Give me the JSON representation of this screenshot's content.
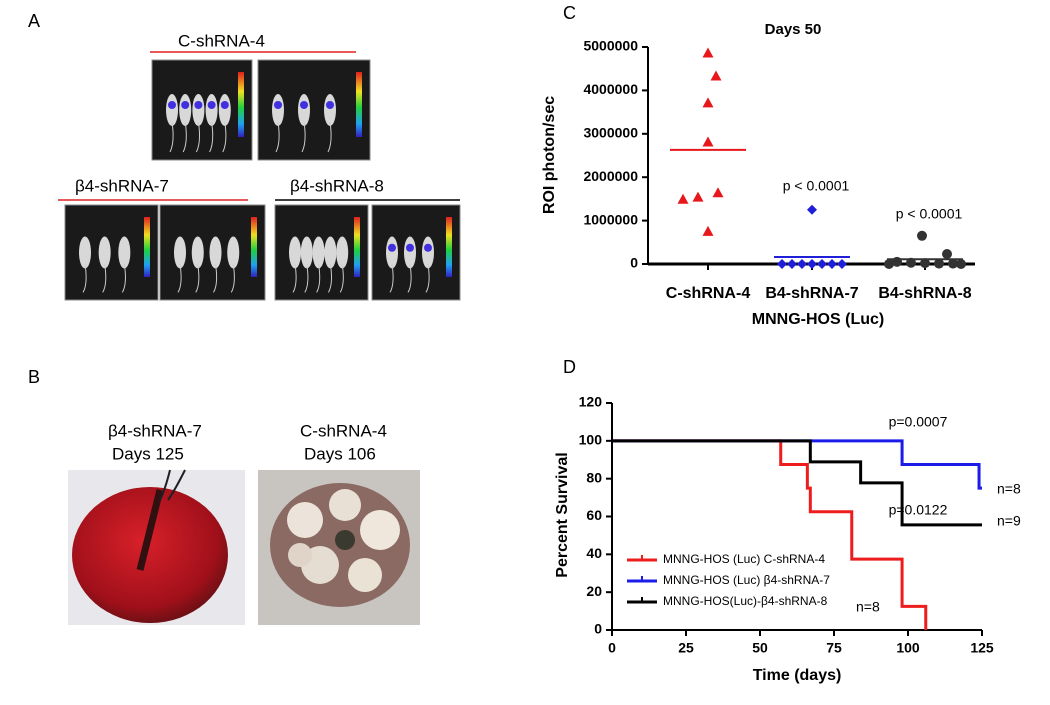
{
  "panels": {
    "A": {
      "label": "A",
      "top_label": "C-shRNA-4",
      "bottom_labels": [
        "β4-shRNA-7",
        "β4-shRNA-8"
      ]
    },
    "B": {
      "label": "B",
      "photos": [
        {
          "name": "β4-shRNA-7",
          "days": "Days 125"
        },
        {
          "name": "C-shRNA-4",
          "days": "Days 106"
        }
      ]
    }
  },
  "chart_data": [
    {
      "type": "strip",
      "panel_label": "C",
      "title": "Days 50",
      "y_label": "ROI photon/sec",
      "x_label": "MNNG-HOS (Luc)",
      "categories": [
        "C-shRNA-4",
        "B4-shRNA-7",
        "B4-shRNA-8"
      ],
      "groups": [
        {
          "color": "#e8171b",
          "marker": "triangle",
          "values": [
            4850000,
            4320000,
            3700000,
            2800000,
            1630000,
            1530000,
            1480000,
            740000
          ],
          "mean": 2630000
        },
        {
          "color": "#1f1fd8",
          "marker": "diamond",
          "values": [
            1250000,
            0,
            0,
            0,
            0,
            0,
            0,
            0
          ],
          "mean": 160000,
          "annotation": "p < 0.0001"
        },
        {
          "color": "#333333",
          "marker": "circle",
          "values": [
            650000,
            230000,
            50000,
            30000,
            20000,
            10000,
            10000,
            0,
            0
          ],
          "mean": 110000,
          "annotation": "p < 0.0001"
        }
      ],
      "ylim": [
        0,
        5000000
      ],
      "yticks": [
        0,
        1000000,
        2000000,
        3000000,
        4000000,
        5000000
      ]
    },
    {
      "type": "line",
      "panel_label": "D",
      "y_label": "Percent Survival",
      "x_label": "Time (days)",
      "xlim": [
        0,
        125
      ],
      "xticks": [
        0,
        25,
        50,
        75,
        100,
        125
      ],
      "ylim": [
        0,
        120
      ],
      "yticks": [
        0,
        20,
        40,
        60,
        80,
        100,
        120
      ],
      "series": [
        {
          "name": "MNNG-HOS (Luc) C-shRNA-4",
          "color": "#ee1c1c",
          "x": [
            0,
            57,
            57,
            66,
            66,
            67,
            67,
            81,
            81,
            98,
            98,
            106,
            106
          ],
          "values": [
            100,
            100,
            87.5,
            87.5,
            75,
            75,
            62.5,
            62.5,
            37.5,
            37.5,
            12.5,
            12.5,
            0
          ],
          "n_label": "n=8"
        },
        {
          "name": "MNNG-HOS (Luc) β4-shRNA-7",
          "color": "#1c1ce8",
          "x": [
            0,
            98,
            98,
            124,
            124,
            125
          ],
          "values": [
            100,
            100,
            87.5,
            87.5,
            75,
            75
          ],
          "p_label": "p=0.0007",
          "n_label": "n=8"
        },
        {
          "name": "MNNG-HOS(Luc)-β4-shRNA-8",
          "color": "#000000",
          "x": [
            0,
            67,
            67,
            84,
            84,
            98,
            98,
            125
          ],
          "values": [
            100,
            100,
            88.9,
            88.9,
            77.8,
            77.8,
            55.6,
            55.6
          ],
          "p_label": "p=0.0122",
          "n_label": "n=9"
        }
      ]
    }
  ]
}
